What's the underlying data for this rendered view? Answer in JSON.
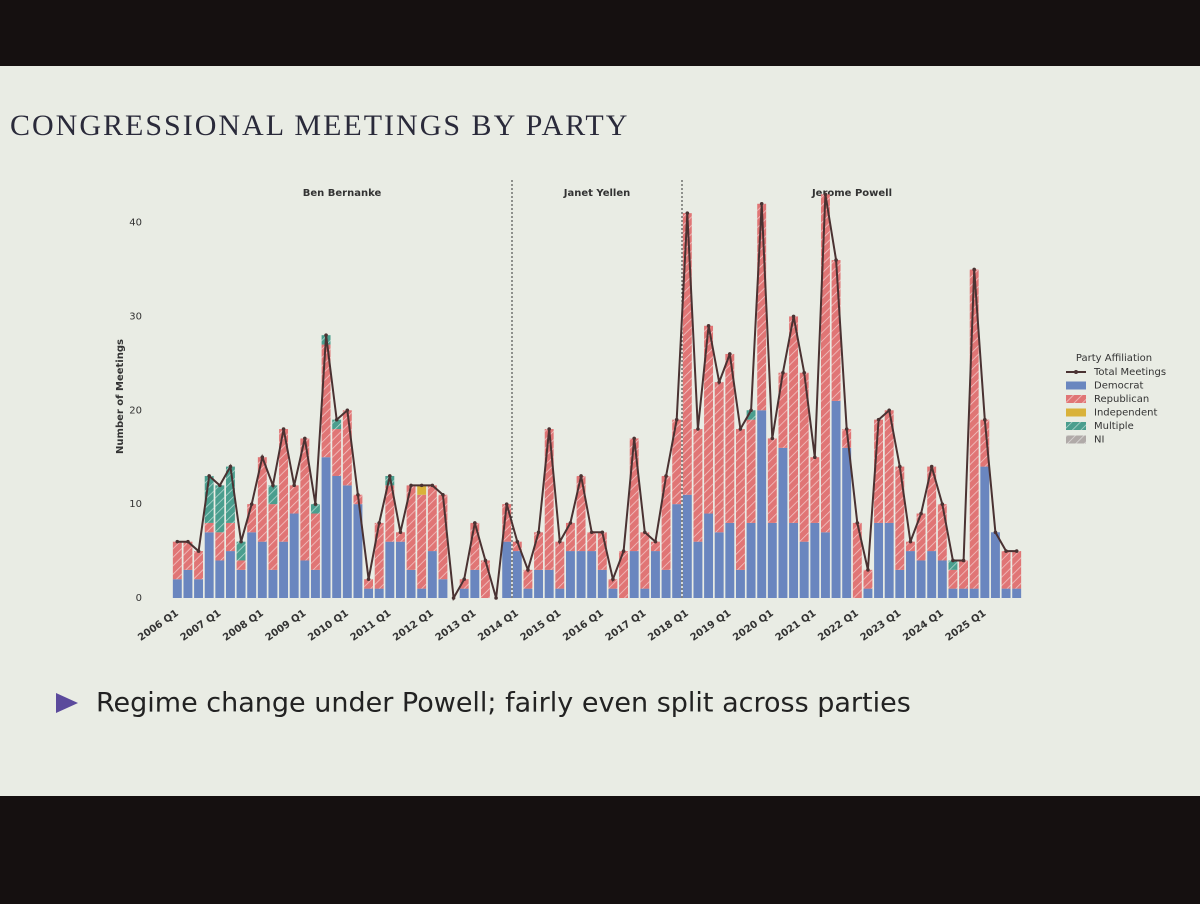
{
  "slide": {
    "title": "CONGRESSIONAL MEETINGS BY PARTY",
    "bullet": "Regime change under Powell; fairly even split across parties"
  },
  "chart_data": {
    "type": "stacked_bar_line",
    "ylabel": "Number of Meetings",
    "legend_title": "Party Affiliation",
    "legend": "right",
    "ylim": [
      0,
      44
    ],
    "yticks": [
      0,
      10,
      20,
      30,
      40
    ],
    "regimes": [
      {
        "label": "Ben Bernanke",
        "start": "2006 Q1"
      },
      {
        "label": "Janet Yellen",
        "start": "2014 Q1"
      },
      {
        "label": "Jerome Powell",
        "start": "2018 Q1"
      }
    ],
    "categories": [
      "2006 Q1",
      null,
      null,
      null,
      "2007 Q1",
      null,
      null,
      null,
      "2008 Q1",
      null,
      null,
      null,
      "2009 Q1",
      null,
      null,
      null,
      "2010 Q1",
      null,
      null,
      null,
      "2011 Q1",
      null,
      null,
      null,
      "2012 Q1",
      null,
      null,
      null,
      "2013 Q1",
      null,
      null,
      null,
      "2014 Q1",
      null,
      null,
      null,
      "2015 Q1",
      null,
      null,
      null,
      "2016 Q1",
      null,
      null,
      null,
      "2017 Q1",
      null,
      null,
      null,
      "2018 Q1",
      null,
      null,
      null,
      "2019 Q1",
      null,
      null,
      null,
      "2020 Q1",
      null,
      null,
      null,
      "2021 Q1",
      null,
      null,
      null,
      "2022 Q1",
      null,
      null,
      null,
      "2023 Q1",
      null,
      null,
      null,
      "2024 Q1",
      null,
      null,
      null,
      "2025 Q1",
      null,
      null,
      null
    ],
    "series": [
      {
        "name": "Total Meetings",
        "type": "line",
        "color": "#4a3232",
        "values": [
          6,
          6,
          5,
          13,
          12,
          14,
          6,
          10,
          15,
          12,
          18,
          12,
          17,
          10,
          28,
          19,
          20,
          11,
          2,
          8,
          13,
          7,
          12,
          12,
          12,
          11,
          0,
          2,
          8,
          4,
          0,
          10,
          6,
          3,
          7,
          18,
          6,
          8,
          13,
          7,
          7,
          2,
          5,
          17,
          7,
          6,
          13,
          19,
          41,
          18,
          29,
          23,
          26,
          18,
          20,
          42,
          17,
          24,
          30,
          24,
          15,
          43,
          36,
          18,
          8,
          3,
          19,
          20,
          14,
          6,
          9,
          14,
          10,
          4,
          4,
          35,
          19,
          7,
          5,
          5
        ]
      },
      {
        "name": "Democrat",
        "type": "bar",
        "color": "#6a86bf",
        "hatch": false,
        "values": [
          2,
          3,
          2,
          7,
          4,
          5,
          3,
          7,
          6,
          3,
          6,
          9,
          4,
          3,
          15,
          13,
          12,
          10,
          1,
          1,
          6,
          6,
          3,
          1,
          5,
          2,
          0,
          1,
          3,
          0,
          0,
          6,
          5,
          1,
          3,
          3,
          1,
          5,
          5,
          5,
          3,
          1,
          0,
          5,
          1,
          5,
          3,
          10,
          11,
          6,
          9,
          7,
          8,
          3,
          8,
          20,
          8,
          16,
          8,
          6,
          8,
          7,
          21,
          16,
          0,
          1,
          8,
          8,
          3,
          5,
          4,
          5,
          4,
          1,
          1,
          1,
          14,
          7,
          1,
          1
        ]
      },
      {
        "name": "Republican",
        "type": "bar",
        "color": "#e07575",
        "hatch": true,
        "values": [
          4,
          3,
          3,
          1,
          3,
          3,
          1,
          3,
          9,
          7,
          12,
          3,
          13,
          6,
          12,
          5,
          8,
          1,
          1,
          7,
          6,
          1,
          9,
          10,
          7,
          9,
          0,
          1,
          5,
          4,
          0,
          4,
          1,
          2,
          4,
          15,
          5,
          3,
          8,
          2,
          4,
          1,
          5,
          12,
          6,
          1,
          10,
          9,
          30,
          12,
          20,
          16,
          18,
          15,
          11,
          22,
          9,
          8,
          22,
          18,
          7,
          36,
          15,
          2,
          8,
          2,
          11,
          12,
          11,
          1,
          5,
          9,
          6,
          2,
          3,
          34,
          5,
          0,
          4,
          4
        ]
      },
      {
        "name": "Independent",
        "type": "bar",
        "color": "#d9b23a",
        "hatch": false,
        "values": [
          0,
          0,
          0,
          0,
          0,
          0,
          0,
          0,
          0,
          0,
          0,
          0,
          0,
          0,
          0,
          0,
          0,
          0,
          0,
          0,
          0,
          0,
          0,
          1,
          0,
          0,
          0,
          0,
          0,
          0,
          0,
          0,
          0,
          0,
          0,
          0,
          0,
          0,
          0,
          0,
          0,
          0,
          0,
          0,
          0,
          0,
          0,
          0,
          0,
          0,
          0,
          0,
          0,
          0,
          0,
          0,
          0,
          0,
          0,
          0,
          0,
          0,
          0,
          0,
          0,
          0,
          0,
          0,
          0,
          0,
          0,
          0,
          0,
          0,
          0,
          0,
          0,
          0,
          0,
          0
        ]
      },
      {
        "name": "Multiple",
        "type": "bar",
        "color": "#4a9e8e",
        "hatch": true,
        "values": [
          0,
          0,
          0,
          5,
          5,
          6,
          2,
          0,
          0,
          2,
          0,
          0,
          0,
          1,
          1,
          1,
          0,
          0,
          0,
          0,
          1,
          0,
          0,
          0,
          0,
          0,
          0,
          0,
          0,
          0,
          0,
          0,
          0,
          0,
          0,
          0,
          0,
          0,
          0,
          0,
          0,
          0,
          0,
          0,
          0,
          0,
          0,
          0,
          0,
          0,
          0,
          0,
          0,
          0,
          1,
          0,
          0,
          0,
          0,
          0,
          0,
          0,
          0,
          0,
          0,
          0,
          0,
          0,
          0,
          0,
          0,
          0,
          0,
          1,
          0,
          0,
          0,
          0,
          0,
          0
        ]
      },
      {
        "name": "NI",
        "type": "bar",
        "color": "#b0aaa8",
        "hatch": true,
        "values": [
          0,
          0,
          0,
          0,
          0,
          0,
          0,
          0,
          0,
          0,
          0,
          0,
          0,
          0,
          0,
          0,
          0,
          0,
          0,
          0,
          0,
          0,
          0,
          0,
          0,
          0,
          0,
          0,
          0,
          0,
          0,
          0,
          0,
          0,
          0,
          0,
          0,
          0,
          0,
          0,
          0,
          0,
          0,
          0,
          0,
          0,
          0,
          0,
          0,
          0,
          0,
          0,
          0,
          0,
          0,
          0,
          0,
          0,
          0,
          0,
          0,
          0,
          0,
          0,
          0,
          0,
          0,
          0,
          0,
          0,
          0,
          0,
          0,
          0,
          0,
          0,
          0,
          0,
          0,
          0
        ]
      }
    ]
  }
}
